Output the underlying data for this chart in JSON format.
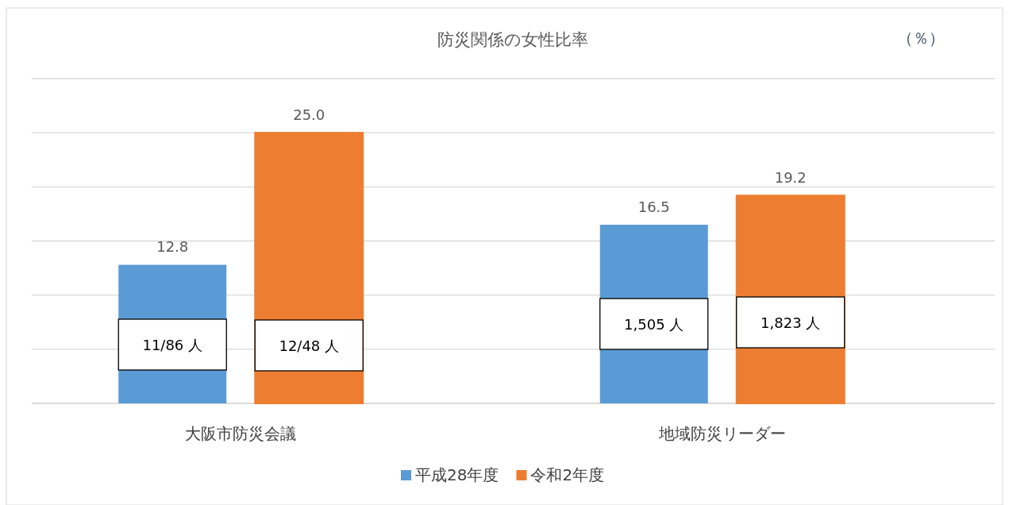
{
  "chart_data": {
    "type": "bar",
    "title": "防災関係の女性比率",
    "categories": [
      "大阪市防災会議",
      "地域防災リーダー"
    ],
    "series": [
      {
        "name": "平成28年度",
        "color": "#5b9bd5",
        "values": [
          12.8,
          16.5
        ],
        "value_labels": [
          "12.8",
          "16.5"
        ]
      },
      {
        "name": "令和2年度",
        "color": "#ed7d31",
        "values": [
          25.0,
          19.2
        ],
        "value_labels": [
          "25.0",
          "19.2"
        ]
      }
    ],
    "ylim": [
      0,
      30
    ],
    "yticks": [
      {
        "value": 0,
        "label": null
      },
      {
        "value": 5,
        "label": null
      },
      {
        "value": 10,
        "label": null
      },
      {
        "value": 15,
        "label": null
      },
      {
        "value": 20,
        "label": null
      },
      {
        "value": 25,
        "label": null
      },
      {
        "value": 30,
        "label": null
      }
    ],
    "tick_labels": "x",
    "grid": "y",
    "legend": "bottom",
    "annotations": [
      "（％）",
      "11/86 人",
      "12/48 人",
      "1,505 人",
      "1,823 人"
    ]
  }
}
